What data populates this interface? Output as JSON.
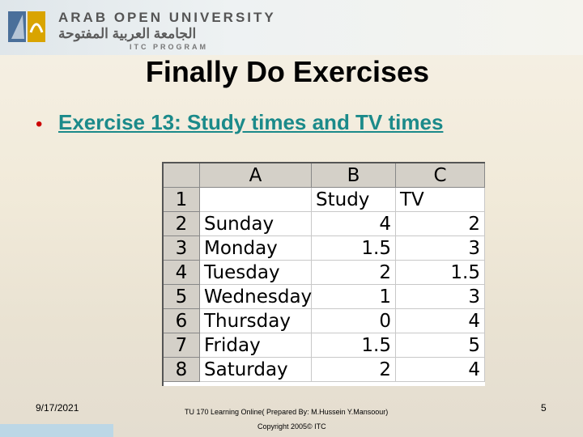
{
  "header": {
    "university": "ARAB OPEN UNIVERSITY",
    "university_arabic": "الجامعة العربية المفتوحة",
    "program": "ITC PROGRAM"
  },
  "title": "Finally Do Exercises",
  "bullet": "Exercise 13: Study times and TV times",
  "spreadsheet": {
    "columns": [
      "A",
      "B",
      "C"
    ],
    "rows": [
      {
        "number": 1,
        "cells": [
          null,
          "Study",
          "TV"
        ]
      },
      {
        "number": 2,
        "cells": [
          "Sunday",
          4,
          2
        ]
      },
      {
        "number": 3,
        "cells": [
          "Monday",
          1.5,
          3
        ]
      },
      {
        "number": 4,
        "cells": [
          "Tuesday",
          2,
          1.5
        ]
      },
      {
        "number": 5,
        "cells": [
          "Wednesday",
          1,
          3
        ]
      },
      {
        "number": 6,
        "cells": [
          "Thursday",
          0,
          4
        ]
      },
      {
        "number": 7,
        "cells": [
          "Friday",
          1.5,
          5
        ]
      },
      {
        "number": 8,
        "cells": [
          "Saturday",
          2,
          4
        ]
      }
    ]
  },
  "footer": {
    "date": "9/17/2021",
    "course": "TU 170 Learning Online( Prepared By: M.Hussein Y.Mansoour)",
    "copyright": "Copyright 2005© ITC",
    "page": 5
  }
}
